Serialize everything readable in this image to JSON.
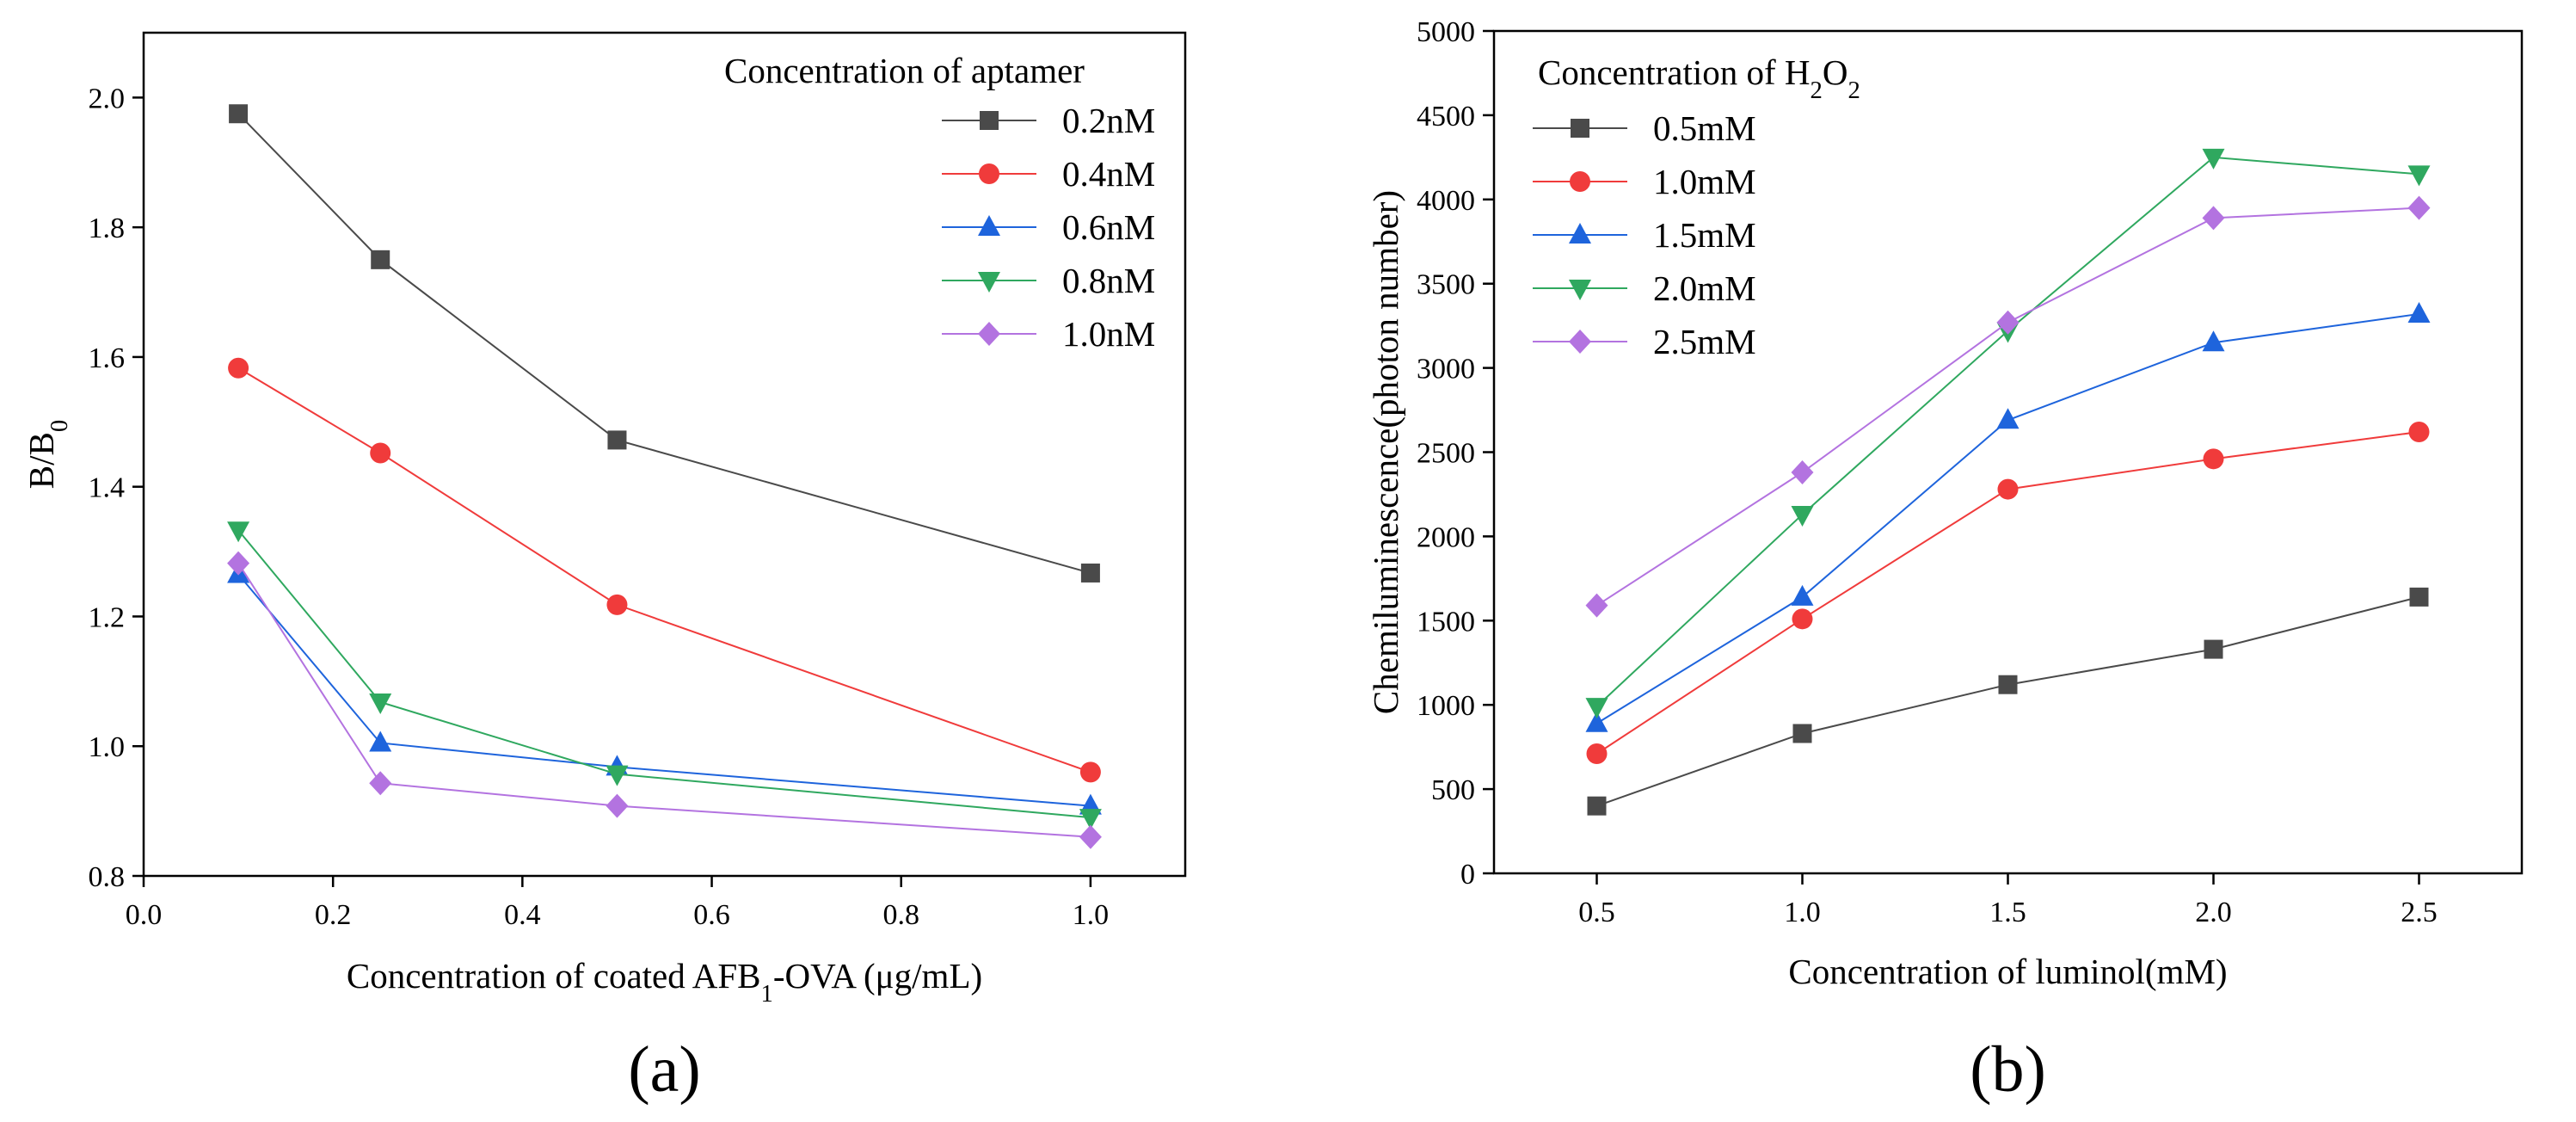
{
  "chart_data": [
    {
      "type": "line",
      "panel_label": "(a)",
      "xlabel": "Concentration of coated AFB₁-OVA (μg/mL)",
      "ylabel": "B/B₀",
      "xlim": [
        0.0,
        1.1
      ],
      "ylim": [
        0.8,
        2.1
      ],
      "xticks": [
        0.0,
        0.2,
        0.4,
        0.6,
        0.8,
        1.0
      ],
      "yticks": [
        0.8,
        1.0,
        1.2,
        1.4,
        1.6,
        1.8,
        2.0
      ],
      "x_tick_labels": [
        "0.0",
        "0.2",
        "0.4",
        "0.6",
        "0.8",
        "1.0"
      ],
      "y_tick_labels": [
        "0.8",
        "1.0",
        "1.2",
        "1.4",
        "1.6",
        "1.8",
        "2.0"
      ],
      "legend_title": "Concentration of aptamer",
      "legend_position": "top-right",
      "x": [
        0.1,
        0.25,
        0.5,
        1.0
      ],
      "series": [
        {
          "name": "0.2nM",
          "marker": "square",
          "color": "#4a4a4a",
          "values": [
            1.975,
            1.75,
            1.472,
            1.267
          ]
        },
        {
          "name": "0.4nM",
          "marker": "circle",
          "color": "#f03b3b",
          "values": [
            1.583,
            1.452,
            1.218,
            0.96
          ]
        },
        {
          "name": "0.6nM",
          "marker": "triangle-up",
          "color": "#1e64dc",
          "values": [
            1.265,
            1.005,
            0.968,
            0.908
          ]
        },
        {
          "name": "0.8nM",
          "marker": "triangle-down",
          "color": "#2fa85f",
          "values": [
            1.333,
            1.068,
            0.957,
            0.89
          ]
        },
        {
          "name": "1.0nM",
          "marker": "diamond",
          "color": "#b373e0",
          "values": [
            1.282,
            0.943,
            0.908,
            0.86
          ]
        }
      ]
    },
    {
      "type": "line",
      "panel_label": "(b)",
      "xlabel": "Concentration of luminol(mM)",
      "ylabel": "Chemiluminescence(photon number)",
      "xlim": [
        0.25,
        2.75
      ],
      "ylim": [
        0,
        5000
      ],
      "xticks": [
        0.5,
        1.0,
        1.5,
        2.0,
        2.5
      ],
      "yticks": [
        0,
        500,
        1000,
        1500,
        2000,
        2500,
        3000,
        3500,
        4000,
        4500,
        5000
      ],
      "x_tick_labels": [
        "0.5",
        "1.0",
        "1.5",
        "2.0",
        "2.5"
      ],
      "y_tick_labels": [
        "0",
        "500",
        "1000",
        "1500",
        "2000",
        "2500",
        "3000",
        "3500",
        "4000",
        "4500",
        "5000"
      ],
      "legend_title": "Concentration of H₂O₂",
      "legend_position": "top-left",
      "x": [
        0.5,
        1.0,
        1.5,
        2.0,
        2.5
      ],
      "series": [
        {
          "name": "0.5mM",
          "marker": "square",
          "color": "#4a4a4a",
          "values": [
            400,
            830,
            1120,
            1330,
            1640
          ]
        },
        {
          "name": "1.0mM",
          "marker": "circle",
          "color": "#f03b3b",
          "values": [
            710,
            1510,
            2280,
            2460,
            2620
          ]
        },
        {
          "name": "1.5mM",
          "marker": "triangle-up",
          "color": "#1e64dc",
          "values": [
            890,
            1640,
            2690,
            3150,
            3320
          ]
        },
        {
          "name": "2.0mM",
          "marker": "triangle-down",
          "color": "#2fa85f",
          "values": [
            990,
            2130,
            3220,
            4250,
            4150
          ]
        },
        {
          "name": "2.5mM",
          "marker": "diamond",
          "color": "#b373e0",
          "values": [
            1590,
            2380,
            3270,
            3890,
            3950
          ]
        }
      ]
    }
  ]
}
